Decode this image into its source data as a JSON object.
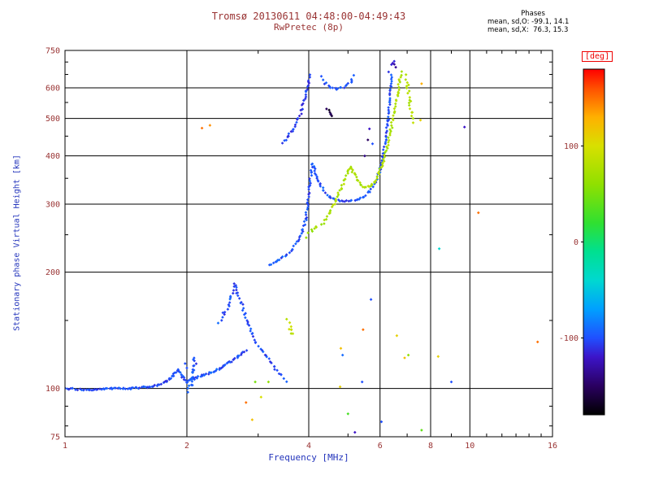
{
  "title": {
    "line1": "Tromsø 20130611 04:48:00-04:49:43",
    "line2": "RwPretec (8p)"
  },
  "stats": {
    "header": "Phases",
    "line_o": "mean, sd,O: -99.1, 14.1",
    "line_x": "mean, sd,X:  76.3, 15.3"
  },
  "colors": {
    "title": "#993333",
    "tick_labels": "#993333",
    "axis_labels": "#2233bb",
    "grid": "#000000",
    "frame": "#000000",
    "deg_label": "#ee0000",
    "stats_text": "#000000",
    "background": "#ffffff"
  },
  "chart_data": {
    "type": "scatter",
    "title": "Tromsø 20130611 04:48:00-04:49:43",
    "subtitle": "RwPretec (8p)",
    "xlabel": "Frequency [MHz]",
    "ylabel": "Stationary phase Virtual Height [km]",
    "xscale": "log",
    "yscale": "log",
    "xlim": [
      1,
      16
    ],
    "ylim": [
      75,
      750
    ],
    "xticks": [
      1,
      2,
      4,
      6,
      8,
      10,
      16
    ],
    "xticks_minor": [
      3,
      5,
      7,
      9,
      11,
      12,
      13,
      14,
      15
    ],
    "xgrid": [
      2,
      4,
      6,
      8,
      10
    ],
    "yticks": [
      75,
      100,
      200,
      300,
      400,
      500,
      600,
      750
    ],
    "yticks_minor": [
      80,
      90,
      150,
      250,
      350,
      450,
      550,
      650,
      700
    ],
    "ygrid": [
      100,
      200,
      300,
      400,
      500,
      600
    ],
    "colorbar": {
      "label": "[deg]",
      "ticks": [
        100,
        0,
        -100
      ],
      "range": [
        -180,
        180
      ],
      "stops": [
        [
          -180,
          "#000000"
        ],
        [
          -150,
          "#2a0060"
        ],
        [
          -120,
          "#3c14c8"
        ],
        [
          -100,
          "#2050ff"
        ],
        [
          -70,
          "#00a0ff"
        ],
        [
          -40,
          "#00d8d0"
        ],
        [
          -10,
          "#00e090"
        ],
        [
          20,
          "#30e030"
        ],
        [
          60,
          "#90e000"
        ],
        [
          100,
          "#d8e000"
        ],
        [
          130,
          "#ffb000"
        ],
        [
          160,
          "#ff5000"
        ],
        [
          180,
          "#ff0000"
        ]
      ]
    },
    "traces": [
      {
        "name": "e-layer-o-mode",
        "phase": -100,
        "jitter": 1.0,
        "step": 2,
        "points": [
          [
            1.0,
            100
          ],
          [
            1.15,
            99
          ],
          [
            1.3,
            100
          ],
          [
            1.45,
            100
          ],
          [
            1.6,
            101
          ],
          [
            1.7,
            102
          ],
          [
            1.78,
            104
          ],
          [
            1.85,
            108
          ],
          [
            1.9,
            112
          ],
          [
            1.95,
            107
          ],
          [
            2.0,
            104
          ],
          [
            2.08,
            106
          ],
          [
            2.18,
            108
          ],
          [
            2.3,
            110
          ],
          [
            2.42,
            113
          ],
          [
            2.55,
            117
          ],
          [
            2.68,
            121
          ],
          [
            2.8,
            125
          ]
        ]
      },
      {
        "name": "es-spread-cluster",
        "phase": -100,
        "jitter": 2.5,
        "step": 2,
        "points": [
          [
            2.03,
            99
          ],
          [
            2.06,
            106
          ],
          [
            2.08,
            113
          ],
          [
            2.1,
            119
          ]
        ]
      },
      {
        "name": "e2-cusp",
        "phase": -100,
        "jitter": 1.5,
        "step": 4,
        "points": [
          [
            2.4,
            148
          ],
          [
            2.47,
            156
          ],
          [
            2.53,
            164
          ],
          [
            2.58,
            173
          ],
          [
            2.63,
            186
          ],
          [
            2.67,
            177
          ],
          [
            2.72,
            167
          ],
          [
            2.78,
            156
          ],
          [
            2.84,
            146
          ],
          [
            2.9,
            138
          ],
          [
            2.97,
            131
          ],
          [
            3.05,
            126
          ],
          [
            3.15,
            121
          ],
          [
            3.28,
            114
          ],
          [
            3.42,
            108
          ],
          [
            3.52,
            104
          ]
        ]
      },
      {
        "name": "f-o-mode-main",
        "phase": -100,
        "jitter": 1.2,
        "step": 3,
        "points": [
          [
            3.2,
            208
          ],
          [
            3.35,
            214
          ],
          [
            3.5,
            221
          ],
          [
            3.65,
            230
          ],
          [
            3.78,
            242
          ],
          [
            3.87,
            256
          ],
          [
            3.93,
            274
          ],
          [
            3.98,
            300
          ],
          [
            4.02,
            335
          ],
          [
            4.05,
            362
          ],
          [
            4.09,
            380
          ],
          [
            4.13,
            372
          ],
          [
            4.18,
            352
          ],
          [
            4.25,
            338
          ],
          [
            4.35,
            325
          ],
          [
            4.5,
            314
          ],
          [
            4.65,
            308
          ],
          [
            4.85,
            305
          ],
          [
            5.05,
            305
          ],
          [
            5.25,
            308
          ],
          [
            5.45,
            314
          ],
          [
            5.65,
            324
          ],
          [
            5.85,
            342
          ],
          [
            6.0,
            368
          ],
          [
            6.1,
            398
          ],
          [
            6.2,
            440
          ],
          [
            6.28,
            492
          ],
          [
            6.34,
            550
          ],
          [
            6.39,
            605
          ],
          [
            6.43,
            650
          ]
        ]
      },
      {
        "name": "f-o-mode-top-curl",
        "phase": -125,
        "jitter": 1.5,
        "step": 3,
        "points": [
          [
            6.42,
            688
          ],
          [
            6.48,
            700
          ],
          [
            6.54,
            682
          ]
        ]
      },
      {
        "name": "f-x-mode-main",
        "phase": 76,
        "jitter": 1.2,
        "step": 3,
        "points": [
          [
            4.35,
            268
          ],
          [
            4.5,
            286
          ],
          [
            4.65,
            306
          ],
          [
            4.8,
            330
          ],
          [
            4.92,
            350
          ],
          [
            5.02,
            366
          ],
          [
            5.09,
            373
          ],
          [
            5.17,
            361
          ],
          [
            5.27,
            347
          ],
          [
            5.38,
            337
          ],
          [
            5.52,
            331
          ],
          [
            5.66,
            334
          ],
          [
            5.8,
            343
          ],
          [
            5.95,
            359
          ],
          [
            6.1,
            383
          ],
          [
            6.24,
            420
          ],
          [
            6.38,
            466
          ],
          [
            6.52,
            522
          ],
          [
            6.63,
            578
          ],
          [
            6.71,
            628
          ],
          [
            6.76,
            658
          ]
        ]
      },
      {
        "name": "f-x-mode-top",
        "phase": 80,
        "jitter": 1.5,
        "step": 4,
        "points": [
          [
            6.95,
            645
          ],
          [
            7.03,
            602
          ],
          [
            7.1,
            558
          ],
          [
            7.16,
            518
          ],
          [
            7.21,
            488
          ]
        ]
      },
      {
        "name": "oblique-o-arc",
        "phase": -105,
        "jitter": 1.3,
        "step": 3,
        "points": [
          [
            3.45,
            432
          ],
          [
            3.56,
            450
          ],
          [
            3.66,
            470
          ],
          [
            3.76,
            496
          ],
          [
            3.84,
            524
          ],
          [
            3.9,
            554
          ],
          [
            3.95,
            586
          ],
          [
            3.99,
            620
          ],
          [
            4.03,
            648
          ]
        ]
      },
      {
        "name": "upper-o-arc",
        "phase": -100,
        "jitter": 1.3,
        "step": 4,
        "points": [
          [
            4.3,
            640
          ],
          [
            4.4,
            618
          ],
          [
            4.52,
            603
          ],
          [
            4.66,
            597
          ],
          [
            4.8,
            599
          ],
          [
            4.95,
            608
          ],
          [
            5.08,
            624
          ],
          [
            5.18,
            644
          ]
        ]
      },
      {
        "name": "dark-phase-cluster",
        "phase": -160,
        "jitter": 1.5,
        "step": 3,
        "points": [
          [
            4.45,
            532
          ],
          [
            4.51,
            516
          ],
          [
            4.56,
            504
          ]
        ]
      },
      {
        "name": "x-mode-lead-in",
        "phase": 70,
        "jitter": 1.5,
        "step": 5,
        "points": [
          [
            3.95,
            247
          ],
          [
            4.07,
            256
          ],
          [
            4.19,
            262
          ],
          [
            4.3,
            266
          ]
        ]
      },
      {
        "name": "x-mode-low-clump",
        "phase": 85,
        "jitter": 2.0,
        "step": 3,
        "points": [
          [
            3.56,
            150
          ],
          [
            3.61,
            143
          ],
          [
            3.66,
            138
          ]
        ]
      }
    ],
    "outliers": [
      [
        1.98,
        116,
        -100
      ],
      [
        2.0,
        113,
        -100
      ],
      [
        2.18,
        472,
        150
      ],
      [
        2.28,
        480,
        140
      ],
      [
        2.8,
        92,
        150
      ],
      [
        2.9,
        83,
        120
      ],
      [
        2.95,
        104,
        50
      ],
      [
        3.05,
        95,
        100
      ],
      [
        3.18,
        104,
        60
      ],
      [
        4.78,
        101,
        110
      ],
      [
        4.8,
        127,
        120
      ],
      [
        4.85,
        122,
        -90
      ],
      [
        5.0,
        86,
        30
      ],
      [
        5.2,
        77,
        -120
      ],
      [
        5.42,
        104,
        -100
      ],
      [
        5.45,
        142,
        150
      ],
      [
        5.5,
        400,
        -140
      ],
      [
        5.6,
        440,
        -150
      ],
      [
        5.65,
        470,
        -120
      ],
      [
        5.75,
        430,
        -100
      ],
      [
        5.7,
        170,
        -100
      ],
      [
        6.05,
        82,
        -100
      ],
      [
        6.3,
        660,
        -110
      ],
      [
        6.6,
        137,
        110
      ],
      [
        6.9,
        120,
        120
      ],
      [
        7.05,
        122,
        60
      ],
      [
        7.6,
        78,
        40
      ],
      [
        7.6,
        615,
        130
      ],
      [
        7.55,
        495,
        110
      ],
      [
        8.35,
        121,
        110
      ],
      [
        8.4,
        230,
        -40
      ],
      [
        9.0,
        104,
        -100
      ],
      [
        9.7,
        475,
        -120
      ],
      [
        10.5,
        285,
        150
      ],
      [
        14.7,
        132,
        150
      ]
    ]
  }
}
